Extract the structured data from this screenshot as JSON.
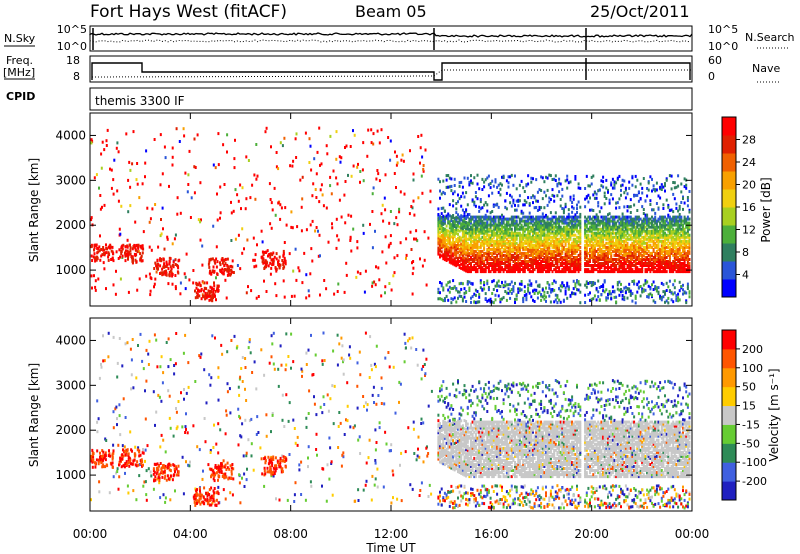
{
  "header": {
    "station": "Fort Hays West (fitACF)",
    "beam": "Beam 05",
    "date": "25/Oct/2011"
  },
  "top_panels": {
    "nsky_label": "N.Sky",
    "nsky_ticks": [
      "10^5",
      "10^0"
    ],
    "nsearch_label": "N.Search",
    "nsearch_ticks": [
      "10^5",
      "10^0"
    ],
    "freq_label_1": "Freq.",
    "freq_label_2": "[MHz]",
    "freq_ticks": [
      "18",
      "8"
    ],
    "nave_label": "Nave",
    "nave_ticks": [
      "60",
      "0"
    ],
    "cpid_label": "CPID",
    "cpid_value": "themis 3300 IF"
  },
  "chart_data": [
    {
      "type": "heatmap",
      "name": "power",
      "ylabel": "Slant Range [km]",
      "yticks": [
        "1000",
        "2000",
        "3000",
        "4000"
      ],
      "ylim": [
        200,
        4500
      ],
      "colorbar_label": "Power [dB]",
      "colorbar_ticks": [
        "28",
        "24",
        "20",
        "16",
        "12",
        "8",
        "4"
      ],
      "colors": [
        "#0000ff",
        "#2a55d8",
        "#2f7f5f",
        "#4caf3a",
        "#a8d020",
        "#f0d010",
        "#f8a000",
        "#f06000",
        "#e02000",
        "#ff0000"
      ]
    },
    {
      "type": "heatmap",
      "name": "velocity",
      "ylabel": "Slant Range [km]",
      "yticks": [
        "1000",
        "2000",
        "3000",
        "4000"
      ],
      "ylim": [
        200,
        4500
      ],
      "colorbar_label": "Velocity [m s⁻¹]",
      "colorbar_ticks": [
        "200",
        "100",
        "50",
        "15",
        "-15",
        "-50",
        "-100",
        "-200"
      ],
      "colors": [
        "#2020c0",
        "#4060e0",
        "#2e8b57",
        "#66cc33",
        "#c8c8c8",
        "#ffcc00",
        "#ff9900",
        "#ff5500",
        "#ff0000"
      ]
    }
  ],
  "time_axis": {
    "xlabel": "Time UT",
    "ticks": [
      "00:00",
      "04:00",
      "08:00",
      "12:00",
      "16:00",
      "20:00",
      "00:00"
    ],
    "xlim_hours": [
      0,
      24
    ]
  }
}
